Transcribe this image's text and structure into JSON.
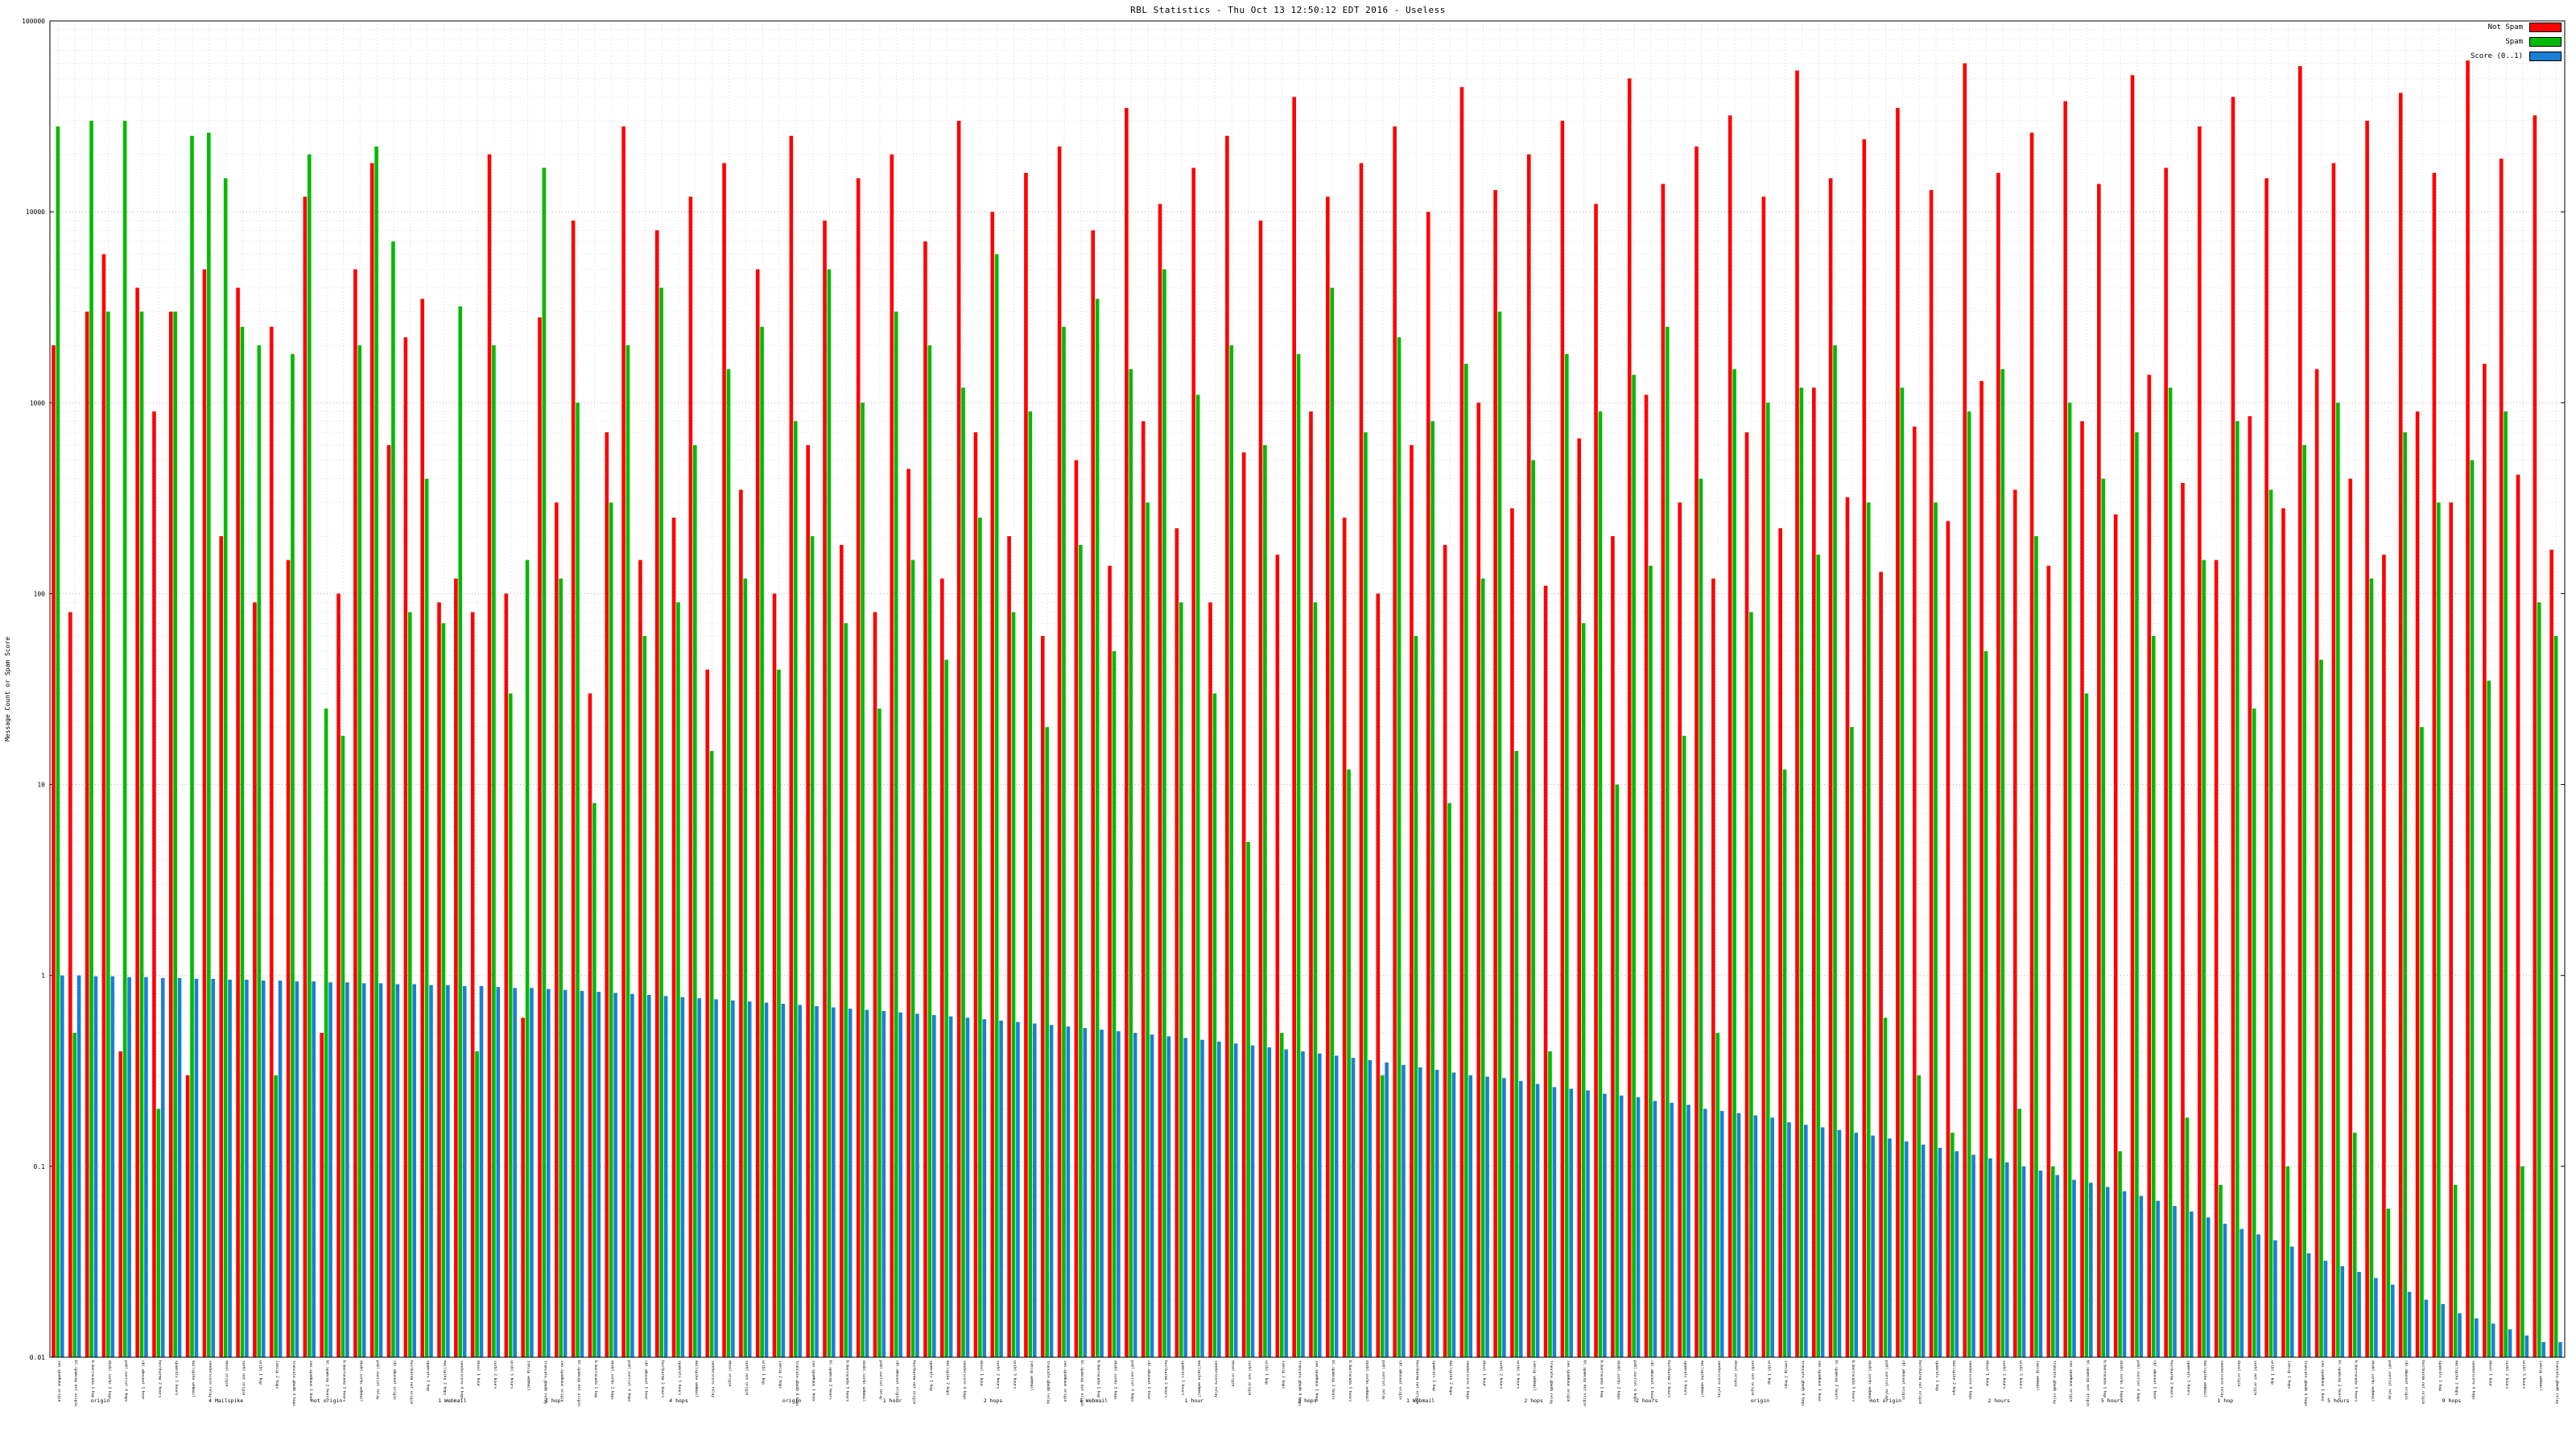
{
  "title": "RBL Statistics - Thu Oct 13 12:50:12 EDT 2016 - Useless",
  "legend": {
    "items": [
      {
        "label": "Not Spam",
        "color": "#ff0000"
      },
      {
        "label": "Spam",
        "color": "#00bb00"
      },
      {
        "label": "Score (0..1)",
        "color": "#1a7fd4"
      }
    ]
  },
  "y_axis": {
    "label": "Message Count or Spam Score",
    "ticks": [
      "100000",
      "10000",
      "1000",
      "100",
      "10",
      "1",
      "0.1",
      "0.01"
    ],
    "min": 0.01,
    "max": 100000,
    "scale": "log"
  },
  "chart_data": {
    "type": "bar",
    "scale": "log-y",
    "grid": "dotted",
    "legend_position": "top-right",
    "series_names": [
      "Not Spam",
      "Spam",
      "Score (0..1)"
    ],
    "colors": {
      "not_spam": "#ff0000",
      "spam": "#00bb00",
      "score": "#1a7fd4"
    },
    "ylim": [
      0.01,
      100000
    ],
    "label_bases": [
      "zen.spamhaus",
      "bl.spamcop",
      "b.barracuda",
      "dnsbl.sorbs",
      "psbl.surriel",
      "cbl.abuseat",
      "hostkarma",
      "spamrats",
      "mailspike",
      "senderscore",
      "dnswl",
      "surbl",
      "uribl",
      "ivmsip",
      "truncate.gbudb"
    ],
    "label_suffixes": [
      "origin",
      "not origin",
      "1 hop",
      "2 hops",
      "4 hops",
      "1 hour",
      "2 hours",
      "5 hours",
      "webmail",
      "relay"
    ],
    "group_labels": [
      {
        "label": "origin",
        "pos": 0.02
      },
      {
        "label": "4 Mailspike",
        "pos": 0.07
      },
      {
        "label": "not origin",
        "pos": 0.11
      },
      {
        "label": "1 Webmail",
        "pos": 0.16
      },
      {
        "label": "1 hop",
        "pos": 0.2
      },
      {
        "label": "4 hops",
        "pos": 0.25
      },
      {
        "label": "origin",
        "pos": 0.295
      },
      {
        "label": "1 hour",
        "pos": 0.335
      },
      {
        "label": "2 hops",
        "pos": 0.375
      },
      {
        "label": "1 Webmail",
        "pos": 0.415
      },
      {
        "label": "1 hour",
        "pos": 0.455
      },
      {
        "label": "3 hops",
        "pos": 0.5
      },
      {
        "label": "1 Webmail",
        "pos": 0.545
      },
      {
        "label": "2 hops",
        "pos": 0.59
      },
      {
        "label": "2 hours",
        "pos": 0.635
      },
      {
        "label": "origin",
        "pos": 0.68
      },
      {
        "label": "not origin",
        "pos": 0.73
      },
      {
        "label": "2 hours",
        "pos": 0.775
      },
      {
        "label": "5 hours",
        "pos": 0.82
      },
      {
        "label": "1 hop",
        "pos": 0.865
      },
      {
        "label": "5 hours",
        "pos": 0.91
      },
      {
        "label": "9 hops",
        "pos": 0.955
      }
    ],
    "points_format": [
      "not_spam",
      "spam",
      "score"
    ],
    "points": [
      [
        2000,
        28000,
        1.0
      ],
      [
        80,
        0.5,
        1.0
      ],
      [
        3000,
        30000,
        0.99
      ],
      [
        6000,
        3000,
        0.99
      ],
      [
        0.4,
        30000,
        0.98
      ],
      [
        4000,
        3000,
        0.98
      ],
      [
        900,
        0.2,
        0.97
      ],
      [
        3000,
        3000,
        0.97
      ],
      [
        0.3,
        25000,
        0.96
      ],
      [
        5000,
        26000,
        0.96
      ],
      [
        200,
        15000,
        0.95
      ],
      [
        4000,
        2500,
        0.95
      ],
      [
        90,
        2000,
        0.94
      ],
      [
        2500,
        0.3,
        0.94
      ],
      [
        150,
        1800,
        0.93
      ],
      [
        12000,
        20000,
        0.93
      ],
      [
        0.5,
        25,
        0.92
      ],
      [
        100,
        18,
        0.92
      ],
      [
        5000,
        2000,
        0.91
      ],
      [
        18000,
        22000,
        0.91
      ],
      [
        600,
        7000,
        0.9
      ],
      [
        2200,
        80,
        0.9
      ],
      [
        3500,
        400,
        0.89
      ],
      [
        90,
        70,
        0.89
      ],
      [
        120,
        3200,
        0.88
      ],
      [
        80,
        0.4,
        0.88
      ],
      [
        20000,
        2000,
        0.87
      ],
      [
        100,
        30,
        0.86
      ],
      [
        0.6,
        150,
        0.86
      ],
      [
        2800,
        17000,
        0.85
      ],
      [
        300,
        120,
        0.84
      ],
      [
        9000,
        1000,
        0.83
      ],
      [
        30,
        8,
        0.82
      ],
      [
        700,
        300,
        0.81
      ],
      [
        28000,
        2000,
        0.8
      ],
      [
        150,
        60,
        0.79
      ],
      [
        8000,
        4000,
        0.78
      ],
      [
        250,
        90,
        0.77
      ],
      [
        12000,
        600,
        0.76
      ],
      [
        40,
        15,
        0.75
      ],
      [
        18000,
        1500,
        0.74
      ],
      [
        350,
        120,
        0.73
      ],
      [
        5000,
        2500,
        0.72
      ],
      [
        100,
        40,
        0.71
      ],
      [
        25000,
        800,
        0.7
      ],
      [
        600,
        200,
        0.69
      ],
      [
        9000,
        5000,
        0.68
      ],
      [
        180,
        70,
        0.67
      ],
      [
        15000,
        1000,
        0.66
      ],
      [
        80,
        25,
        0.65
      ],
      [
        20000,
        3000,
        0.64
      ],
      [
        450,
        150,
        0.63
      ],
      [
        7000,
        2000,
        0.62
      ],
      [
        120,
        45,
        0.61
      ],
      [
        30000,
        1200,
        0.6
      ],
      [
        700,
        250,
        0.59
      ],
      [
        10000,
        6000,
        0.58
      ],
      [
        200,
        80,
        0.57
      ],
      [
        16000,
        900,
        0.56
      ],
      [
        60,
        20,
        0.55
      ],
      [
        22000,
        2500,
        0.54
      ],
      [
        500,
        180,
        0.53
      ],
      [
        8000,
        3500,
        0.52
      ],
      [
        140,
        50,
        0.51
      ],
      [
        35000,
        1500,
        0.5
      ],
      [
        800,
        300,
        0.49
      ],
      [
        11000,
        5000,
        0.48
      ],
      [
        220,
        90,
        0.47
      ],
      [
        17000,
        1100,
        0.46
      ],
      [
        90,
        30,
        0.45
      ],
      [
        25000,
        2000,
        0.44
      ],
      [
        550,
        5,
        0.43
      ],
      [
        9000,
        600,
        0.42
      ],
      [
        160,
        0.5,
        0.41
      ],
      [
        40000,
        1800,
        0.4
      ],
      [
        900,
        90,
        0.39
      ],
      [
        12000,
        4000,
        0.38
      ],
      [
        250,
        12,
        0.37
      ],
      [
        18000,
        700,
        0.36
      ],
      [
        100,
        0.3,
        0.35
      ],
      [
        28000,
        2200,
        0.34
      ],
      [
        600,
        60,
        0.33
      ],
      [
        10000,
        800,
        0.32
      ],
      [
        180,
        8,
        0.31
      ],
      [
        45000,
        1600,
        0.3
      ],
      [
        1000,
        120,
        0.295
      ],
      [
        13000,
        3000,
        0.29
      ],
      [
        280,
        15,
        0.28
      ],
      [
        20000,
        500,
        0.27
      ],
      [
        110,
        0.4,
        0.26
      ],
      [
        30000,
        1800,
        0.255
      ],
      [
        650,
        70,
        0.25
      ],
      [
        11000,
        900,
        0.24
      ],
      [
        200,
        10,
        0.235
      ],
      [
        50000,
        1400,
        0.23
      ],
      [
        1100,
        140,
        0.22
      ],
      [
        14000,
        2500,
        0.215
      ],
      [
        300,
        18,
        0.21
      ],
      [
        22000,
        400,
        0.2
      ],
      [
        120,
        0.5,
        0.195
      ],
      [
        32000,
        1500,
        0.19
      ],
      [
        700,
        80,
        0.185
      ],
      [
        12000,
        1000,
        0.18
      ],
      [
        220,
        12,
        0.17
      ],
      [
        55000,
        1200,
        0.165
      ],
      [
        1200,
        160,
        0.16
      ],
      [
        15000,
        2000,
        0.155
      ],
      [
        320,
        20,
        0.15
      ],
      [
        24000,
        300,
        0.145
      ],
      [
        130,
        0.6,
        0.14
      ],
      [
        35000,
        1200,
        0.135
      ],
      [
        750,
        0.3,
        0.13
      ],
      [
        13000,
        300,
        0.125
      ],
      [
        240,
        0.15,
        0.12
      ],
      [
        60000,
        900,
        0.115
      ],
      [
        1300,
        50,
        0.11
      ],
      [
        16000,
        1500,
        0.105
      ],
      [
        350,
        0.2,
        0.1
      ],
      [
        26000,
        200,
        0.095
      ],
      [
        140,
        0.1,
        0.09
      ],
      [
        38000,
        1000,
        0.085
      ],
      [
        800,
        30,
        0.082
      ],
      [
        14000,
        400,
        0.078
      ],
      [
        260,
        0.12,
        0.074
      ],
      [
        52000,
        700,
        0.07
      ],
      [
        1400,
        60,
        0.066
      ],
      [
        17000,
        1200,
        0.062
      ],
      [
        380,
        0.18,
        0.058
      ],
      [
        28000,
        150,
        0.054
      ],
      [
        150,
        0.08,
        0.05
      ],
      [
        40000,
        800,
        0.047
      ],
      [
        850,
        25,
        0.044
      ],
      [
        15000,
        350,
        0.041
      ],
      [
        280,
        0.1,
        0.038
      ],
      [
        58000,
        600,
        0.035
      ],
      [
        1500,
        45,
        0.032
      ],
      [
        18000,
        1000,
        0.03
      ],
      [
        400,
        0.15,
        0.028
      ],
      [
        30000,
        120,
        0.026
      ],
      [
        160,
        0.06,
        0.024
      ],
      [
        42000,
        700,
        0.022
      ],
      [
        900,
        20,
        0.02
      ],
      [
        16000,
        300,
        0.019
      ],
      [
        300,
        0.08,
        0.017
      ],
      [
        62000,
        500,
        0.016
      ],
      [
        1600,
        35,
        0.015
      ],
      [
        19000,
        900,
        0.014
      ],
      [
        420,
        0.1,
        0.013
      ],
      [
        32000,
        90,
        0.012
      ],
      [
        170,
        60,
        0.012
      ]
    ]
  }
}
